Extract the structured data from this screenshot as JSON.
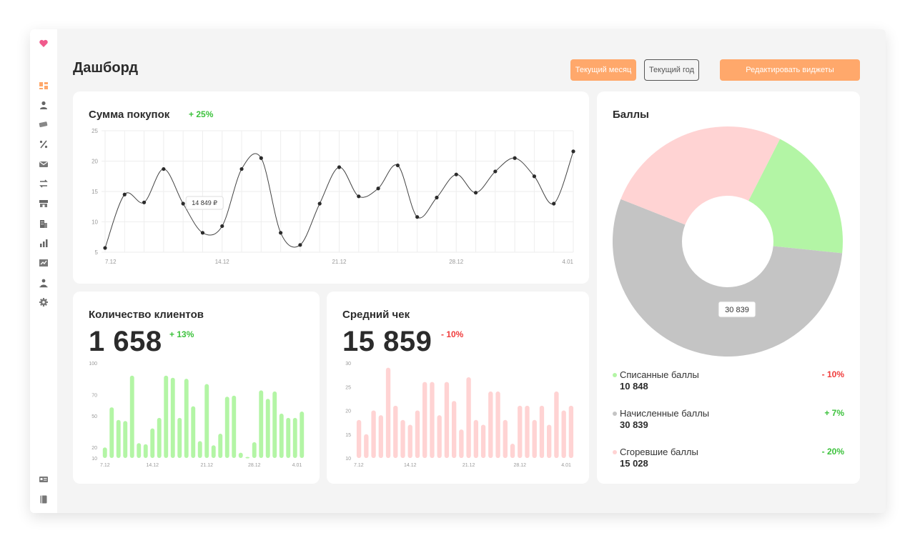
{
  "header": {
    "title": "Дашборд",
    "btn_month": "Текущий месяц",
    "btn_year": "Текущий год",
    "btn_edit": "Редактировать виджеты"
  },
  "colors": {
    "accent": "#ffa86b",
    "logo": "#f05a8c",
    "positive": "#3cc23c",
    "negative": "#f03c3c",
    "green_bar": "#b3f5a5",
    "pink_bar": "#ffd3d3",
    "gray_slice": "#c4c4c4"
  },
  "sidebar": {
    "items": [
      "logo-heart-icon",
      "dashboard-icon",
      "user-icon",
      "card-icon",
      "percent-icon",
      "mail-icon",
      "transfer-icon",
      "store-icon",
      "building-icon",
      "bar-chart-icon",
      "chart-check-icon",
      "person-icon",
      "gear-icon",
      "id-card-icon",
      "book-icon"
    ]
  },
  "purchases": {
    "title": "Сумма покупок",
    "delta": "+ 25%",
    "tooltip": "14 849 ₽"
  },
  "clients": {
    "title": "Количество клиентов",
    "value": "1 658",
    "delta": "+ 13%"
  },
  "avg_check": {
    "title": "Средний чек",
    "value": "15 859",
    "delta": "- 10%"
  },
  "points": {
    "title": "Баллы",
    "tooltip": "30 839",
    "legend": [
      {
        "name": "Списанные баллы",
        "value": "10 848",
        "delta": "- 10%",
        "trend": "neg",
        "color": "#b3f5a5"
      },
      {
        "name": "Начисленные баллы",
        "value": "30 839",
        "delta": "+ 7%",
        "trend": "pos",
        "color": "#c4c4c4"
      },
      {
        "name": "Сгоревшие баллы",
        "value": "15 028",
        "delta": "- 20%",
        "trend": "pos",
        "color": "#ffd3d3"
      }
    ]
  },
  "chart_data": [
    {
      "type": "line",
      "title": "Сумма покупок",
      "ylim": [
        5,
        25
      ],
      "yticks": [
        5,
        10,
        15,
        20,
        25
      ],
      "x_tick_labels": [
        "7.12",
        "14.12",
        "21.12",
        "28.12",
        "4.01"
      ],
      "x_count": 25,
      "values": [
        5.7,
        14.5,
        13.2,
        18.7,
        13.0,
        8.2,
        9.3,
        18.7,
        20.5,
        8.2,
        6.2,
        13.0,
        19.0,
        14.2,
        15.5,
        19.3,
        10.8,
        14.0,
        17.8,
        14.8,
        18.3,
        20.5,
        17.5,
        13.0,
        21.6
      ],
      "grid": true
    },
    {
      "type": "bar",
      "title": "Количество клиентов",
      "ylim": [
        10,
        100
      ],
      "yticks": [
        10,
        20,
        50,
        70,
        100
      ],
      "x_tick_labels": [
        "7.12",
        "14.12",
        "21.12",
        "28.12",
        "4.01"
      ],
      "values": [
        20,
        58,
        46,
        45,
        88,
        24,
        23,
        38,
        48,
        88,
        86,
        48,
        85,
        59,
        26,
        80,
        22,
        33,
        68,
        69,
        15,
        11,
        25,
        74,
        66,
        73,
        52,
        48,
        48,
        54
      ]
    },
    {
      "type": "bar",
      "title": "Средний чек",
      "ylim": [
        10,
        30
      ],
      "yticks": [
        10,
        15,
        20,
        25,
        30
      ],
      "x_tick_labels": [
        "7.12",
        "14.12",
        "21.12",
        "28.12",
        "4.01"
      ],
      "values": [
        18,
        15,
        20,
        19,
        29,
        21,
        18,
        17,
        20,
        26,
        26,
        19,
        26,
        22,
        16,
        27,
        18,
        17,
        24,
        24,
        18,
        13,
        21,
        21,
        18,
        21,
        17,
        24,
        20,
        21
      ]
    },
    {
      "type": "pie",
      "title": "Баллы",
      "labels": [
        "Списанные баллы",
        "Начисленные баллы",
        "Сгоревшие баллы"
      ],
      "values": [
        10848,
        30839,
        15028
      ],
      "colors": [
        "#b3f5a5",
        "#c4c4c4",
        "#ffd3d3"
      ],
      "donut": true
    }
  ]
}
